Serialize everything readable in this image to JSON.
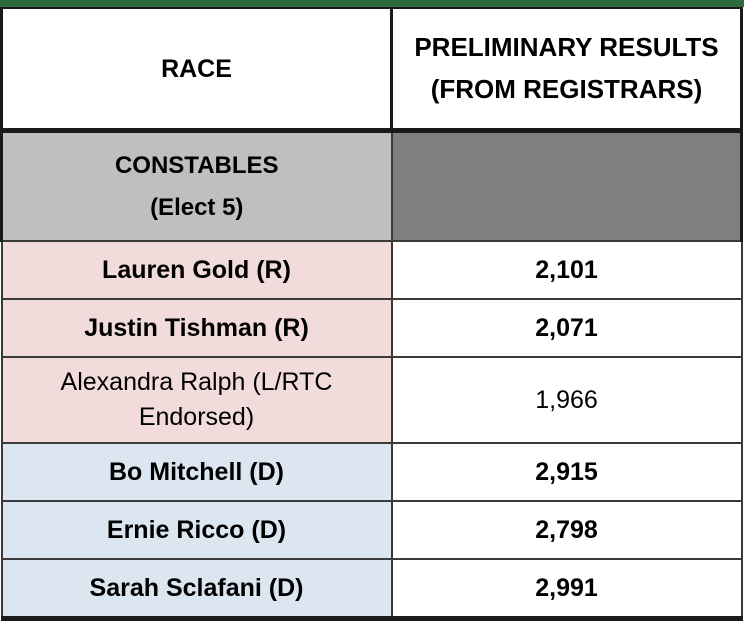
{
  "header": {
    "race": "RACE",
    "results_line1": "PRELIMINARY RESULTS",
    "results_line2": "(FROM REGISTRARS)"
  },
  "section": {
    "title": "CONSTABLES",
    "subtitle": "(Elect 5)"
  },
  "candidates": [
    {
      "name": "Lauren Gold (R)",
      "votes": "2,101",
      "party": "R",
      "bold": true
    },
    {
      "name": "Justin Tishman (R)",
      "votes": "2,071",
      "party": "R",
      "bold": true
    },
    {
      "name_line1": "Alexandra Ralph (L/RTC",
      "name_line2": "Endorsed)",
      "votes": "1,966",
      "party": "L",
      "bold": false
    },
    {
      "name": "Bo Mitchell (D)",
      "votes": "2,915",
      "party": "D",
      "bold": true
    },
    {
      "name": "Ernie Ricco (D)",
      "votes": "2,798",
      "party": "D",
      "bold": true
    },
    {
      "name": "Sarah Sclafani (D)",
      "votes": "2,991",
      "party": "D",
      "bold": true
    }
  ],
  "colors": {
    "republican_fill": "#f2dcdb",
    "democrat_fill": "#dce6f1",
    "section_label_fill": "#bfbfbf",
    "section_value_fill": "#7f7f7f",
    "top_rule": "#2f6b3f"
  }
}
